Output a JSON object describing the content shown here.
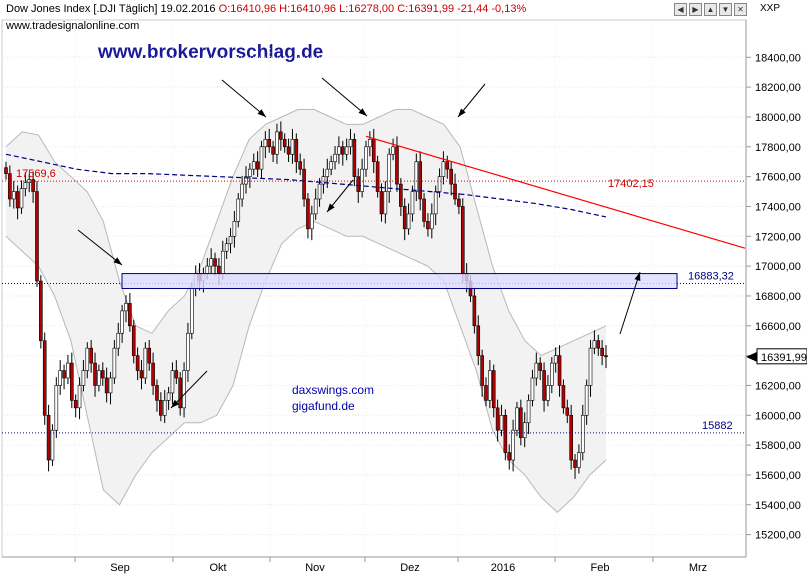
{
  "header": {
    "title": "Dow Jones Index [.DJI  Täglich] 19.02.2016",
    "ohlc": "O:16410,96 H:16410,96 L:16278,00 C:16391,99 -21,44 -0,13%",
    "site": "www.tradesignalonline.com",
    "scale_label": "XXP"
  },
  "watermarks": {
    "brand": "www.brokervorschlag.de",
    "line1": "daxswings.com",
    "line2": "gigafund.de"
  },
  "chart_data": {
    "type": "candlestick",
    "title": "Dow Jones Index [.DJI  Täglich] 19.02.2016",
    "ylim": [
      15050,
      18650
    ],
    "y_ticks": [
      15200,
      15400,
      15600,
      15800,
      16000,
      16200,
      16400,
      16600,
      16800,
      17000,
      17200,
      17400,
      17600,
      17800,
      18000,
      18200,
      18400
    ],
    "y_tick_labels": [
      "15200,00",
      "15400,00",
      "15600,00",
      "15800,00",
      "16000,00",
      "16200,00",
      "16400,00",
      "16600,00",
      "16800,00",
      "17000,00",
      "17200,00",
      "17400,00",
      "17600,00",
      "17800,00",
      "18000,00",
      "18200,00",
      "18400,00"
    ],
    "x_labels": [
      "Sep",
      "Okt",
      "Nov",
      "Dez",
      "2016",
      "Feb",
      "Mrz"
    ],
    "grid": true,
    "levels": [
      {
        "label": "17569,6",
        "value": 17569.6,
        "color": "#cc0000"
      },
      {
        "label": "16883,32",
        "value": 16883.32,
        "color": "#000080"
      },
      {
        "label": "15882",
        "value": 15882,
        "color": "#000080"
      }
    ],
    "trendline": {
      "label": "17402,15",
      "from": 17870,
      "to": 17120,
      "color": "#ff0000"
    },
    "zone": {
      "low": 16850,
      "high": 16950
    },
    "last_price": "16391,99",
    "closes": [
      17620,
      17450,
      17500,
      17390,
      17520,
      17560,
      17580,
      17500,
      16900,
      16500,
      16000,
      15700,
      15900,
      16200,
      16300,
      16250,
      16350,
      16100,
      16050,
      16200,
      16300,
      16450,
      16350,
      16200,
      16300,
      16250,
      16150,
      16250,
      16450,
      16550,
      16700,
      16750,
      16600,
      16400,
      16300,
      16250,
      16450,
      16350,
      16200,
      16100,
      16000,
      16100,
      16150,
      16300,
      16250,
      16050,
      16300,
      16550,
      16850,
      16950,
      16900,
      16950,
      17000,
      17050,
      17000,
      16950,
      17100,
      17150,
      17200,
      17300,
      17450,
      17550,
      17600,
      17650,
      17700,
      17650,
      17800,
      17850,
      17800,
      17750,
      17900,
      17850,
      17800,
      17750,
      17850,
      17700,
      17650,
      17450,
      17250,
      17350,
      17450,
      17550,
      17600,
      17650,
      17700,
      17750,
      17800,
      17750,
      17800,
      17850,
      17600,
      17500,
      17650,
      17800,
      17850,
      17700,
      17500,
      17350,
      17500,
      17750,
      17800,
      17550,
      17400,
      17250,
      17350,
      17500,
      17700,
      17450,
      17300,
      17250,
      17350,
      17500,
      17600,
      17700,
      17650,
      17550,
      17450,
      17400,
      16950,
      16900,
      16800,
      16600,
      16400,
      16200,
      16100,
      16300,
      16050,
      15900,
      16000,
      15750,
      15700,
      15900,
      16050,
      15850,
      15950,
      16100,
      16250,
      16350,
      16300,
      16100,
      16200,
      16350,
      16400,
      16200,
      16050,
      16000,
      15700,
      15650,
      15750,
      16000,
      16200,
      16450,
      16500,
      16450,
      16400,
      16391.99
    ],
    "ma": [
      17750,
      17700,
      17650,
      17620,
      17620,
      17610,
      17600,
      17590,
      17580,
      17560,
      17540,
      17520,
      17500,
      17480,
      17450,
      17420,
      17380,
      17330
    ],
    "band_upper": [
      17800,
      17900,
      17880,
      17700,
      17600,
      17500,
      17300,
      16900,
      16600,
      16550,
      16700,
      16800,
      17000,
      17300,
      17600,
      17850,
      17950,
      18000,
      18050,
      18050,
      18000,
      17950,
      17950,
      18000,
      18050,
      18050,
      18000,
      17950,
      17800,
      17400,
      17000,
      16700,
      16500,
      16400,
      16450,
      16500,
      16550,
      16600
    ],
    "band_lower": [
      17200,
      17100,
      17000,
      16800,
      16500,
      16000,
      15500,
      15400,
      15600,
      15750,
      15850,
      15950,
      15950,
      16000,
      16200,
      16600,
      16900,
      17150,
      17250,
      17300,
      17250,
      17200,
      17200,
      17150,
      17100,
      17050,
      17000,
      16900,
      16600,
      16300,
      15900,
      15700,
      15600,
      15450,
      15350,
      15450,
      15600,
      15700
    ]
  }
}
